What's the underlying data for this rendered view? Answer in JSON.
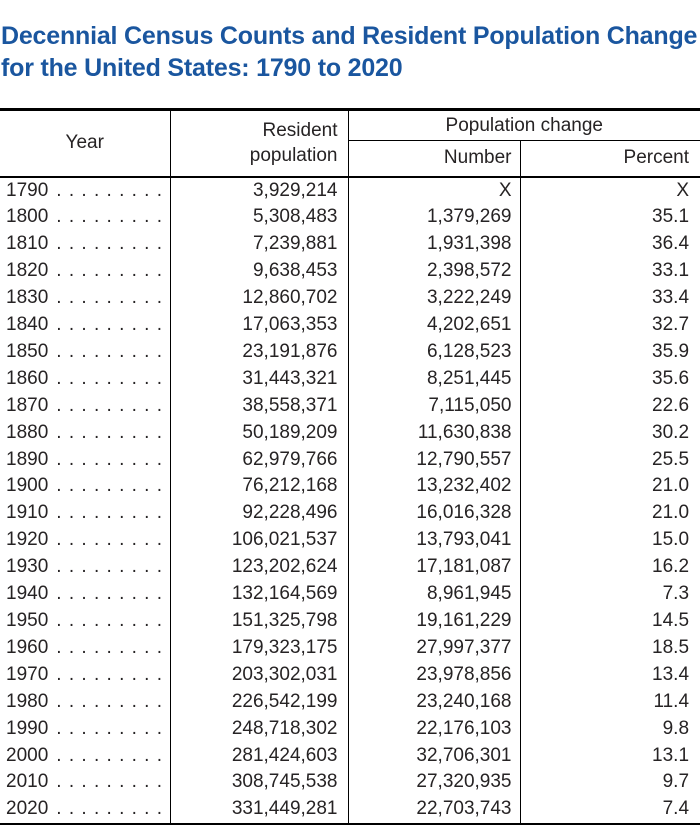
{
  "page_title": "Decennial Census Counts and Resident Population Change for the United States: 1790 to 2020",
  "colors": {
    "title_blue": "#1a569f",
    "text": "#262324",
    "border": "#000000",
    "background": "#ffffff"
  },
  "table": {
    "header": {
      "year": "Year",
      "resident_population": "Resident population",
      "population_change": "Population change",
      "number": "Number",
      "percent": "Percent"
    },
    "not_applicable_symbol": "X",
    "dot_leader": ". . . . . . . . . . . . . . . . . . . .",
    "rows": [
      {
        "year": "1790",
        "resident_population": "3,929,214",
        "change_number": "X",
        "change_percent": "X"
      },
      {
        "year": "1800",
        "resident_population": "5,308,483",
        "change_number": "1,379,269",
        "change_percent": "35.1"
      },
      {
        "year": "1810",
        "resident_population": "7,239,881",
        "change_number": "1,931,398",
        "change_percent": "36.4"
      },
      {
        "year": "1820",
        "resident_population": "9,638,453",
        "change_number": "2,398,572",
        "change_percent": "33.1"
      },
      {
        "year": "1830",
        "resident_population": "12,860,702",
        "change_number": "3,222,249",
        "change_percent": "33.4"
      },
      {
        "year": "1840",
        "resident_population": "17,063,353",
        "change_number": "4,202,651",
        "change_percent": "32.7"
      },
      {
        "year": "1850",
        "resident_population": "23,191,876",
        "change_number": "6,128,523",
        "change_percent": "35.9"
      },
      {
        "year": "1860",
        "resident_population": "31,443,321",
        "change_number": "8,251,445",
        "change_percent": "35.6"
      },
      {
        "year": "1870",
        "resident_population": "38,558,371",
        "change_number": "7,115,050",
        "change_percent": "22.6"
      },
      {
        "year": "1880",
        "resident_population": "50,189,209",
        "change_number": "11,630,838",
        "change_percent": "30.2"
      },
      {
        "year": "1890",
        "resident_population": "62,979,766",
        "change_number": "12,790,557",
        "change_percent": "25.5"
      },
      {
        "year": "1900",
        "resident_population": "76,212,168",
        "change_number": "13,232,402",
        "change_percent": "21.0"
      },
      {
        "year": "1910",
        "resident_population": "92,228,496",
        "change_number": "16,016,328",
        "change_percent": "21.0"
      },
      {
        "year": "1920",
        "resident_population": "106,021,537",
        "change_number": "13,793,041",
        "change_percent": "15.0"
      },
      {
        "year": "1930",
        "resident_population": "123,202,624",
        "change_number": "17,181,087",
        "change_percent": "16.2"
      },
      {
        "year": "1940",
        "resident_population": "132,164,569",
        "change_number": "8,961,945",
        "change_percent": "7.3"
      },
      {
        "year": "1950",
        "resident_population": "151,325,798",
        "change_number": "19,161,229",
        "change_percent": "14.5"
      },
      {
        "year": "1960",
        "resident_population": "179,323,175",
        "change_number": "27,997,377",
        "change_percent": "18.5"
      },
      {
        "year": "1970",
        "resident_population": "203,302,031",
        "change_number": "23,978,856",
        "change_percent": "13.4"
      },
      {
        "year": "1980",
        "resident_population": "226,542,199",
        "change_number": "23,240,168",
        "change_percent": "11.4"
      },
      {
        "year": "1990",
        "resident_population": "248,718,302",
        "change_number": "22,176,103",
        "change_percent": "9.8"
      },
      {
        "year": "2000",
        "resident_population": "281,424,603",
        "change_number": "32,706,301",
        "change_percent": "13.1"
      },
      {
        "year": "2010",
        "resident_population": "308,745,538",
        "change_number": "27,320,935",
        "change_percent": "9.7"
      },
      {
        "year": "2020",
        "resident_population": "331,449,281",
        "change_number": "22,703,743",
        "change_percent": "7.4"
      }
    ]
  }
}
